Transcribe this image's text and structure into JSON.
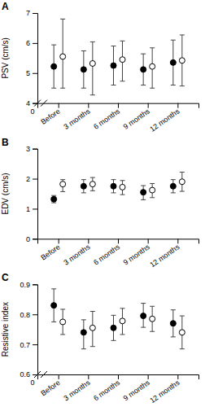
{
  "chart_data": [
    {
      "type": "scatter",
      "title": "A",
      "ylabel": "PSV (cm/s)",
      "categories": [
        "Before",
        "3 months",
        "6 months",
        "9 months",
        "12 months"
      ],
      "ylim": [
        4.0,
        7.0
      ],
      "yticks": [
        4,
        5,
        6,
        7
      ],
      "annotations": [
        "0"
      ],
      "series": [
        {
          "color": "#000000",
          "marker": "circle",
          "values": [
            5.22,
            5.12,
            5.25,
            5.12,
            5.35
          ],
          "errors_low": [
            0.72,
            0.62,
            0.65,
            0.52,
            0.75
          ],
          "errors_high": [
            0.72,
            0.62,
            0.65,
            0.52,
            0.75
          ]
        },
        {
          "color": "#ffffff",
          "marker": "circle-open",
          "values": [
            5.55,
            5.32,
            5.45,
            5.22,
            5.42
          ],
          "errors_low": [
            1.05,
            1.05,
            0.72,
            0.72,
            0.85
          ],
          "errors_high": [
            1.25,
            0.72,
            0.62,
            0.62,
            0.85
          ]
        }
      ]
    },
    {
      "type": "scatter",
      "title": "B",
      "ylabel": "EDV (cm/s)",
      "categories": [
        "Before",
        "3 months",
        "6 months",
        "9 months",
        "12 months"
      ],
      "ylim": [
        0,
        3.0
      ],
      "yticks": [
        0,
        1.0,
        2.0,
        3.0
      ],
      "series": [
        {
          "color": "#000000",
          "marker": "circle",
          "values": [
            1.32,
            1.75,
            1.75,
            1.55,
            1.75
          ],
          "errors_low": [
            0.12,
            0.22,
            0.22,
            0.25,
            0.22
          ],
          "errors_high": [
            0.12,
            0.22,
            0.22,
            0.22,
            0.22
          ]
        },
        {
          "color": "#ffffff",
          "marker": "circle-open",
          "values": [
            1.82,
            1.82,
            1.72,
            1.62,
            1.9
          ],
          "errors_low": [
            0.25,
            0.22,
            0.25,
            0.25,
            0.32
          ],
          "errors_high": [
            0.15,
            0.22,
            0.22,
            0.22,
            0.32
          ]
        }
      ]
    },
    {
      "type": "scatter",
      "title": "C",
      "ylabel": "Resistive index",
      "categories": [
        "Before",
        "3 months",
        "6 months",
        "9 months",
        "12 months"
      ],
      "ylim": [
        0.6,
        0.9
      ],
      "yticks": [
        0.6,
        0.7,
        0.8,
        0.9
      ],
      "annotations": [
        "0"
      ],
      "series": [
        {
          "color": "#000000",
          "marker": "circle",
          "values": [
            0.83,
            0.74,
            0.755,
            0.795,
            0.77
          ],
          "errors_low": [
            0.055,
            0.055,
            0.042,
            0.038,
            0.045
          ],
          "errors_high": [
            0.055,
            0.042,
            0.042,
            0.042,
            0.045
          ]
        },
        {
          "color": "#ffffff",
          "marker": "circle-open",
          "values": [
            0.775,
            0.755,
            0.778,
            0.785,
            0.74
          ],
          "errors_low": [
            0.042,
            0.062,
            0.045,
            0.042,
            0.055
          ],
          "errors_high": [
            0.042,
            0.055,
            0.042,
            0.042,
            0.055
          ]
        }
      ]
    }
  ]
}
